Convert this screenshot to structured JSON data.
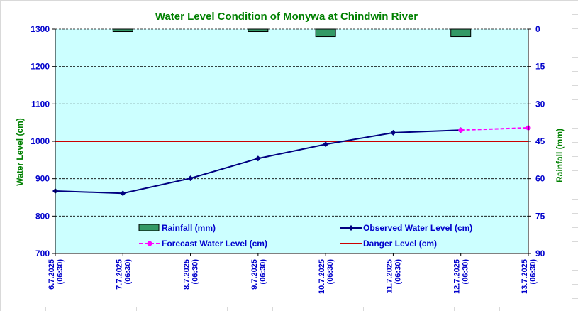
{
  "chart_data": {
    "type": "line",
    "title": "Water Level Condition of Monywa at Chindwin River",
    "ylabel": "Water Level (cm)",
    "y2label": "Rainfall (mm)",
    "ylim": [
      700,
      1300
    ],
    "yticks": [
      700,
      800,
      900,
      1000,
      1100,
      1200,
      1300
    ],
    "y2lim": [
      0,
      90
    ],
    "y2ticks": [
      0,
      15,
      30,
      45,
      60,
      75,
      90
    ],
    "y2_reversed": true,
    "categories": [
      "6.7.2025\n(06:30)",
      "7.7.2025\n(06:30)",
      "8.7.2025\n(06:30)",
      "9.7.2025\n(06:30)",
      "10.7.2025\n(06:30)",
      "11.7.2025\n(06:30)",
      "12.7.2025\n(06:30)",
      "13.7.2025\n(06:30)"
    ],
    "grid": "horizontal",
    "plot_background": "#ccffff",
    "series": [
      {
        "name": "Rainfall (mm)",
        "kind": "bar",
        "axis": "right",
        "color": "#339966",
        "values": [
          0,
          1,
          0,
          1,
          3,
          0,
          3,
          null
        ]
      },
      {
        "name": "Observed Water Level (cm)",
        "kind": "line",
        "axis": "left",
        "color": "#000080",
        "marker": "diamond",
        "values": [
          867,
          861,
          901,
          954,
          992,
          1023,
          1030,
          null
        ]
      },
      {
        "name": "Forecast Water Level (cm)",
        "kind": "line",
        "axis": "left",
        "color": "#ff00ff",
        "dashed": true,
        "marker": "circle",
        "values": [
          null,
          null,
          null,
          null,
          null,
          null,
          1030,
          1036
        ]
      },
      {
        "name": "Danger Level (cm)",
        "kind": "hline",
        "axis": "left",
        "color": "#cc0000",
        "value": 1000
      }
    ],
    "title_color": "#008000",
    "axis_label_color": "#008000",
    "tick_color": "#0000cc"
  }
}
